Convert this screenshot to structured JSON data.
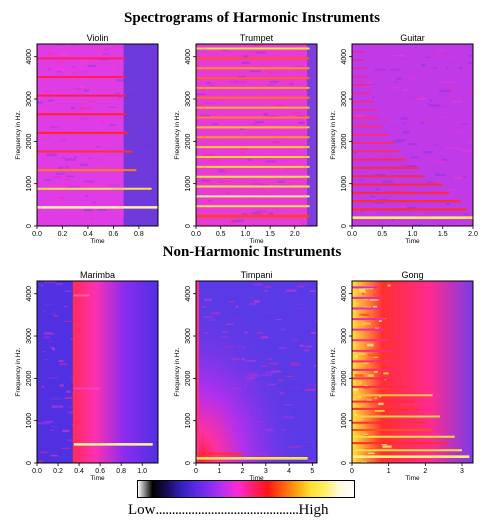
{
  "headings": {
    "harmonic": "Spectrograms of Harmonic Instruments",
    "non_harmonic": "Non-Harmonic Instruments"
  },
  "legend": {
    "low": "Low",
    "dots": "............................................",
    "high": "High",
    "colors": [
      "#ffffff",
      "#000000",
      "#1a0a5a",
      "#3320b8",
      "#5a2ae6",
      "#8a2cf0",
      "#c030ee",
      "#ff2ad2",
      "#ff1e6e",
      "#ff1414",
      "#ff5a10",
      "#ffa010",
      "#ffe030",
      "#fff06a",
      "#fffae0",
      "#ffffff"
    ]
  },
  "chart_data": [
    {
      "type": "heatmap",
      "title": "Violin",
      "xlabel": "Time",
      "ylabel": "Frequency in Hz.",
      "xlim": [
        0,
        0.95
      ],
      "ylim": [
        0,
        4300
      ],
      "xticks": [
        "0.0",
        "0.2",
        "0.4",
        "0.6",
        "0.8"
      ],
      "xtick_values": [
        0,
        0.2,
        0.4,
        0.6,
        0.8
      ],
      "yticks": [
        "0",
        "1000",
        "2000",
        "3000",
        "4000"
      ],
      "ytick_values": [
        0,
        1000,
        2000,
        3000,
        4000
      ],
      "background": "#e03ce6",
      "tail_color": "#5a3ad8",
      "note_end": 0.68,
      "harmonics_hz": [
        440,
        880,
        1320,
        1760,
        2200,
        2640,
        3080,
        3520,
        3960
      ],
      "harmonic_colors": [
        "#fff4a0",
        "#ffe04a",
        "#ff7a20",
        "#ff3030",
        "#ff2424",
        "#ff2030",
        "#ff2040",
        "#ff2050",
        "#ff2060"
      ],
      "harmonic_ends": [
        0.95,
        0.9,
        0.78,
        0.75,
        0.72,
        0.7,
        0.7,
        0.69,
        0.69
      ]
    },
    {
      "type": "heatmap",
      "title": "Trumpet",
      "xlabel": "Time",
      "ylabel": "Frequency in Hz.",
      "xlim": [
        0,
        2.45
      ],
      "ylim": [
        0,
        4300
      ],
      "xticks": [
        "0.0",
        "0.5",
        "1.0",
        "1.5",
        "2.0"
      ],
      "xtick_values": [
        0,
        0.5,
        1.0,
        1.5,
        2.0
      ],
      "yticks": [
        "0",
        "1000",
        "2000",
        "3000",
        "4000"
      ],
      "ytick_values": [
        0,
        1000,
        2000,
        3000,
        4000
      ],
      "background": "#e83ad6",
      "tail_color": "#6a40e0",
      "note_end": 2.25,
      "harmonics_hz": [
        233,
        466,
        699,
        932,
        1165,
        1398,
        1631,
        1864,
        2097,
        2330,
        2563,
        2796,
        3029,
        3262,
        3495,
        3728,
        3961,
        4194
      ],
      "harmonic_colors": [
        "#ff4020",
        "#ffe040",
        "#fff080",
        "#ffe040",
        "#ffe040",
        "#ffd030",
        "#ffd030",
        "#ffc830",
        "#ff9a20",
        "#ffc030",
        "#ff8020",
        "#ffb828",
        "#ff7020",
        "#ffa020",
        "#ff6020",
        "#ff9020",
        "#ff5020",
        "#ffe040"
      ],
      "harmonic_ends": [
        2.3,
        2.3,
        2.3,
        2.3,
        2.3,
        2.3,
        2.3,
        2.3,
        2.3,
        2.3,
        2.3,
        2.3,
        2.3,
        2.3,
        2.3,
        2.3,
        2.3,
        2.3
      ]
    },
    {
      "type": "heatmap",
      "title": "Guitar",
      "xlabel": "Time",
      "ylabel": "Frequency in Hz.",
      "xlim": [
        0,
        2.0
      ],
      "ylim": [
        0,
        4300
      ],
      "xticks": [
        "0.0",
        "0.5",
        "1.0",
        "1.5",
        "2.0"
      ],
      "xtick_values": [
        0,
        0.5,
        1.0,
        1.5,
        2.0
      ],
      "yticks": [
        "0",
        "1000",
        "2000",
        "3000",
        "4000"
      ],
      "ytick_values": [
        0,
        1000,
        2000,
        3000,
        4000
      ],
      "background": "#c03ae8",
      "tail_color": "#c03ae8",
      "note_end": 2.0,
      "harmonics_hz": [
        196,
        392,
        588,
        784,
        980,
        1176,
        1372,
        1568,
        1764,
        1960,
        2156,
        2352,
        2548,
        2744,
        2940,
        3136,
        3332,
        3528,
        3724,
        3920,
        4116
      ],
      "harmonic_colors": [
        "#fff060",
        "#ff3020",
        "#ff3020",
        "#ff2a30",
        "#ff2a30",
        "#ff2a40",
        "#ff2a40",
        "#ff2a50",
        "#ff2a60",
        "#ff2a60",
        "#ff2a70",
        "#ff2a70",
        "#ff2a80",
        "#f02a90",
        "#f02a90",
        "#e82aa0",
        "#e82aa0",
        "#e02ab0",
        "#e02ab0",
        "#d82ab8",
        "#d82ab8"
      ],
      "harmonic_ends": [
        2.0,
        1.9,
        1.8,
        1.6,
        1.5,
        1.2,
        1.1,
        0.9,
        0.8,
        0.7,
        0.6,
        0.5,
        0.45,
        0.4,
        0.35,
        0.3,
        0.3,
        0.25,
        0.25,
        0.2,
        0.2
      ]
    },
    {
      "type": "heatmap",
      "title": "Marimba",
      "xlabel": "Time",
      "ylabel": "Frequency in Hz.",
      "xlim": [
        0,
        1.15
      ],
      "ylim": [
        0,
        4300
      ],
      "xticks": [
        "0.0",
        "0.2",
        "0.4",
        "0.6",
        "0.8",
        "1.0"
      ],
      "xtick_values": [
        0,
        0.2,
        0.4,
        0.6,
        0.8,
        1.0
      ],
      "yticks": [
        "0",
        "1000",
        "2000",
        "3000",
        "4000"
      ],
      "ytick_values": [
        0,
        1000,
        2000,
        3000,
        4000
      ],
      "background": "#5030e0",
      "tail_color": "#5030e0",
      "onset": 0.35,
      "harmonics_hz": [
        440,
        1760,
        3960
      ],
      "harmonic_colors": [
        "#fff4a0",
        "#ff40c0",
        "#ff60a0"
      ],
      "harmonic_ends": [
        1.1,
        0.6,
        0.5
      ]
    },
    {
      "type": "heatmap",
      "title": "Timpani",
      "xlabel": "Time",
      "ylabel": "Frequency in Hz.",
      "xlim": [
        0,
        5.2
      ],
      "ylim": [
        0,
        4300
      ],
      "xticks": [
        "0",
        "1",
        "2",
        "3",
        "4",
        "5"
      ],
      "xtick_values": [
        0,
        1,
        2,
        3,
        4,
        5
      ],
      "yticks": [
        "0",
        "1000",
        "2000",
        "3000",
        "4000"
      ],
      "ytick_values": [
        0,
        1000,
        2000,
        3000,
        4000
      ],
      "background": "#5a3ae6",
      "tail_color": "#5a3ae6",
      "harmonics_hz": [
        110,
        220
      ],
      "harmonic_colors": [
        "#ffe050",
        "#ff3020"
      ],
      "harmonic_ends": [
        4.8,
        2.0
      ]
    },
    {
      "type": "heatmap",
      "title": "Gong",
      "xlabel": "Time",
      "ylabel": "Frequency in Hz.",
      "xlim": [
        0,
        3.3
      ],
      "ylim": [
        0,
        4300
      ],
      "xticks": [
        "0",
        "1",
        "2",
        "3"
      ],
      "xtick_values": [
        0,
        1,
        2,
        3
      ],
      "yticks": [
        "0",
        "1000",
        "2000",
        "3000",
        "4000"
      ],
      "ytick_values": [
        0,
        1000,
        2000,
        3000,
        4000
      ],
      "background": "#ff2a8a",
      "tail_color": "#7a3ce8",
      "harmonics_hz": [
        150,
        300,
        470,
        620,
        780,
        950,
        1100,
        1280,
        1450,
        1600,
        1800,
        2000,
        2200,
        2400,
        2650,
        2900,
        3150,
        3400,
        3650,
        3900,
        4150
      ],
      "harmonic_colors": [
        "#fff080",
        "#ffe040",
        "#ff3020",
        "#ffe040",
        "#ff5020",
        "#ff3030",
        "#ffd040",
        "#ff3030",
        "#ff2a40",
        "#ffc040",
        "#ff2a50",
        "#ff2a60",
        "#ff2a70",
        "#ff2a70",
        "#ff2a80",
        "#ff2a90",
        "#f02aa0",
        "#f02aa0",
        "#e82ab0",
        "#e82ab0",
        "#e02ab8"
      ],
      "harmonic_ends": [
        3.2,
        3.0,
        2.6,
        2.8,
        2.2,
        2.0,
        2.4,
        1.8,
        1.7,
        2.2,
        1.5,
        1.4,
        1.3,
        1.2,
        1.1,
        1.0,
        0.9,
        0.9,
        0.8,
        0.8,
        0.7
      ]
    }
  ]
}
